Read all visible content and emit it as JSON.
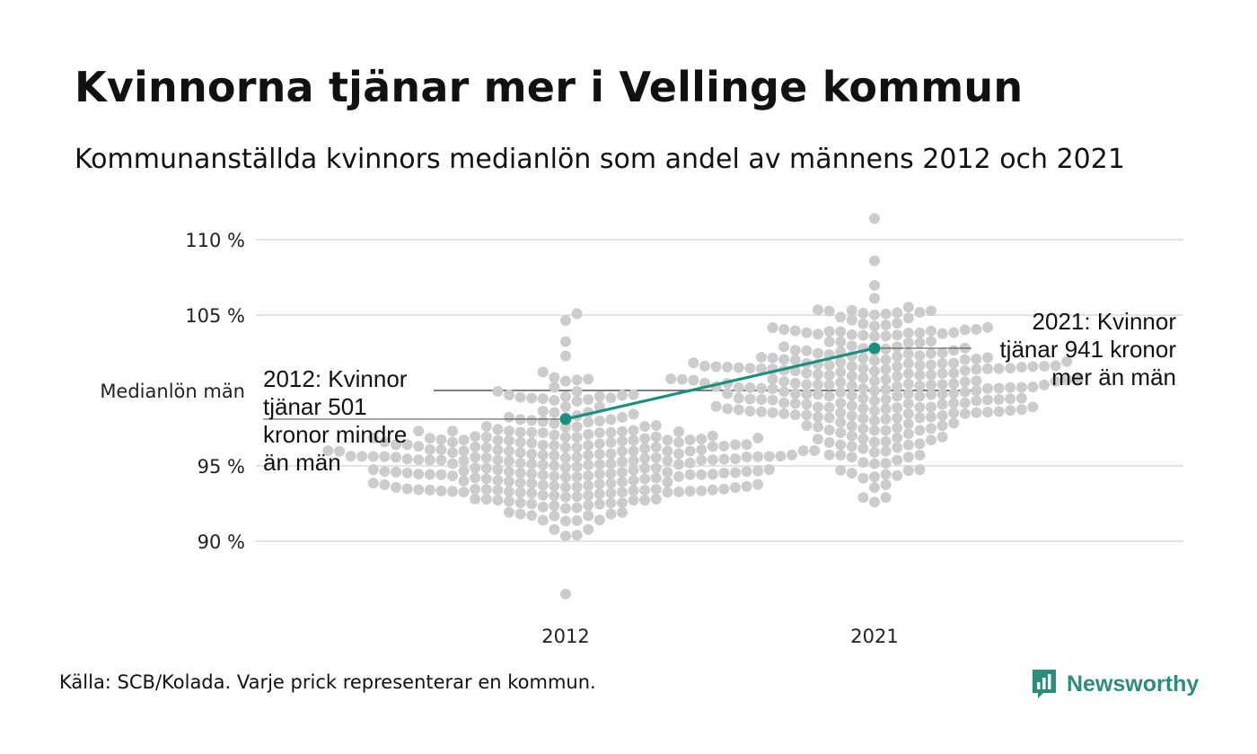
{
  "title": "Kvinnorna tjänar mer i Vellinge kommun",
  "subtitle": "Kommunanställda kvinnors medianlön som andel av männens 2012 och 2021",
  "source": "Källa: SCB/Kolada. Varje prick representerar en kommun.",
  "brand": {
    "name": "Newsworthy",
    "icon": "bar-chart-logo-icon",
    "color": "#2e8c7c"
  },
  "colors": {
    "dots": "#cccccc",
    "highlight": "#1b8f80",
    "grid": "#e3e3e3",
    "reference": "#333333"
  },
  "chart_data": {
    "type": "scatter",
    "categories": [
      "2012",
      "2021"
    ],
    "y_ticks": [
      {
        "value": 90,
        "label": "90 %"
      },
      {
        "value": 95,
        "label": "95 %"
      },
      {
        "value": 100,
        "label": "Medianlön män"
      },
      {
        "value": 105,
        "label": "105 %"
      },
      {
        "value": 110,
        "label": "110 %"
      }
    ],
    "ylim": [
      86.5,
      112
    ],
    "grid": true,
    "reference_line": {
      "value": 100,
      "label": "Medianlön män"
    },
    "highlight": {
      "name": "Vellinge",
      "values": [
        {
          "x": "2012",
          "y": 98.1
        },
        {
          "x": "2021",
          "y": 102.8
        }
      ]
    },
    "annotations": [
      {
        "x": "2012",
        "y": 98.1,
        "lines": [
          "2012: Kvinnor",
          "tjänar 501",
          "kronor mindre",
          "än män"
        ]
      },
      {
        "x": "2021",
        "y": 102.8,
        "lines": [
          "2021: Kvinnor",
          "tjänar 941 kronor",
          "mer än män"
        ]
      }
    ],
    "distribution": [
      {
        "x": "2012",
        "min": 86.5,
        "max": 105.1,
        "center": 95.3,
        "spread": 2.4,
        "count": 290
      },
      {
        "x": "2021",
        "min": 92.6,
        "max": 111.4,
        "center": 100.6,
        "spread": 2.6,
        "count": 290
      }
    ]
  }
}
